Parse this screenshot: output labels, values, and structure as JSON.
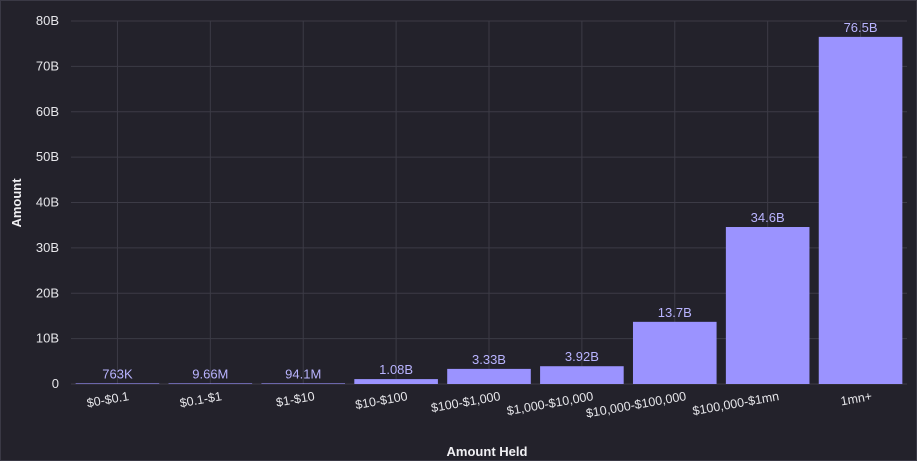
{
  "chart_data": {
    "type": "bar",
    "title": "",
    "xlabel": "Amount Held",
    "ylabel": "Amount",
    "ylim": [
      0,
      80000000000
    ],
    "yticks": [
      0,
      10000000000,
      20000000000,
      30000000000,
      40000000000,
      50000000000,
      60000000000,
      70000000000,
      80000000000
    ],
    "ytick_labels": [
      "0",
      "10B",
      "20B",
      "30B",
      "40B",
      "50B",
      "60B",
      "70B",
      "80B"
    ],
    "categories": [
      "$0-$0.1",
      "$0.1-$1",
      "$1-$10",
      "$10-$100",
      "$100-$1,000",
      "$1,000-$10,000",
      "$10,000-$100,000",
      "$100,000-$1mn",
      "1mn+"
    ],
    "values": [
      763000,
      9660000,
      94100000,
      1080000000,
      3330000000,
      3920000000,
      13700000000,
      34600000000,
      76500000000
    ],
    "value_labels": [
      "763K",
      "9.66M",
      "94.1M",
      "1.08B",
      "3.33B",
      "3.92B",
      "13.7B",
      "34.6B",
      "76.5B"
    ],
    "grid": true,
    "legend": "none",
    "colors": {
      "background": "#23222b",
      "bar": "#9b93ff",
      "data_label": "#b9b4ff",
      "grid": "#3c3b46",
      "text": "#e6e6ea"
    }
  }
}
